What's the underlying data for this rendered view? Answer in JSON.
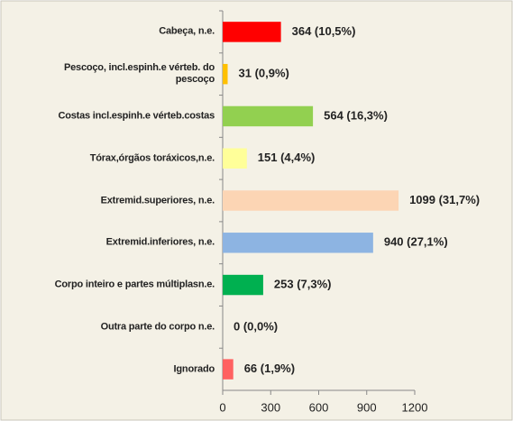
{
  "chart_data": {
    "type": "hbar",
    "categories": [
      "Cabeça, n.e.",
      "Pescoço, incl.espinh.e vérteb.  do pescoço",
      "Costas incl.espinh.e vérteb.costas",
      "Tórax,órgãos toráxicos,n.e.",
      "Extremid.superiores, n.e.",
      "Extremid.inferiores, n.e.",
      "Corpo inteiro e partes múltiplasn.e.",
      "Outra parte do corpo n.e.",
      "Ignorado"
    ],
    "values": [
      364,
      31,
      564,
      151,
      1099,
      940,
      253,
      0,
      66
    ],
    "value_labels": [
      "364 (10,5%)",
      "31 (0,9%)",
      "564 (16,3%)",
      "151 (4,4%)",
      "1099 (31,7%)",
      "940 (27,1%)",
      "253 (7,3%)",
      "0 (0,0%)",
      "66 (1,9%)"
    ],
    "colors": [
      "#ff0000",
      "#ffc000",
      "#92d050",
      "#ffff99",
      "#fcd5b4",
      "#8db4e2",
      "#00b050",
      "#7f7f7f",
      "#ff6161"
    ],
    "xlim": [
      0,
      1200
    ],
    "xticks": [
      0,
      300,
      600,
      900,
      1200
    ],
    "grid": false
  }
}
